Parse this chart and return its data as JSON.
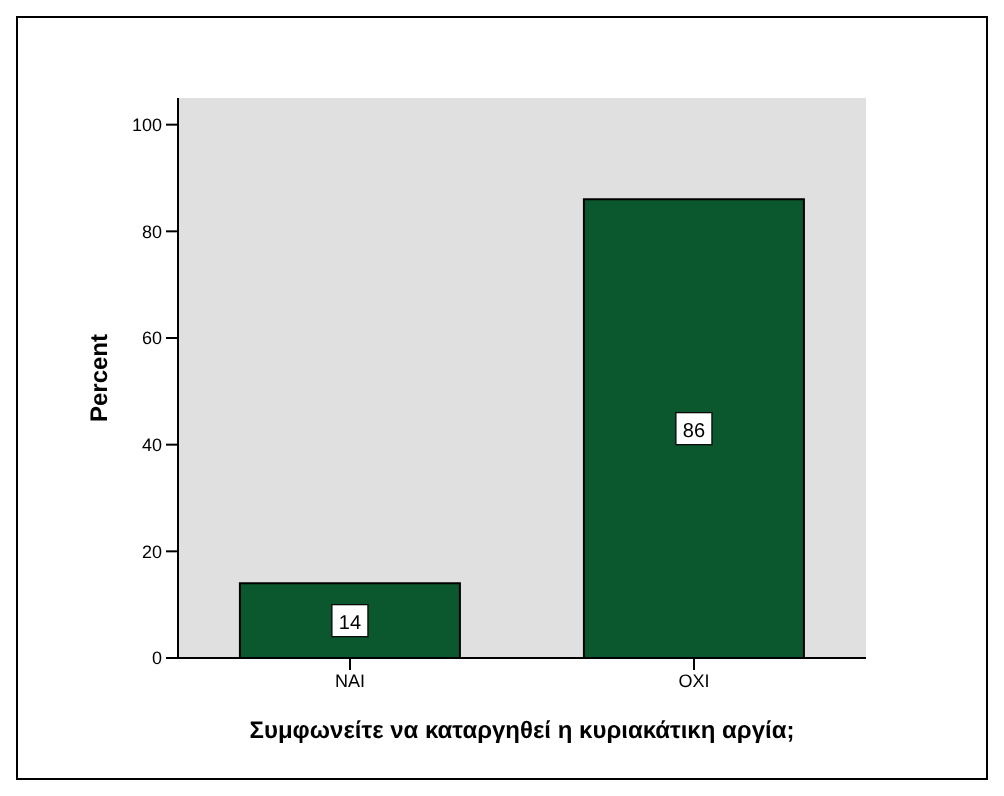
{
  "chart_data": {
    "type": "bar",
    "xlabel": "Συμφωνείτε να καταργηθεί η κυριακάτικη αργία;",
    "ylabel": "Percent",
    "categories": [
      "ΝΑΙ",
      "ΟΧΙ"
    ],
    "values": [
      14,
      86
    ],
    "color": "#0b572e",
    "ylim": [
      0,
      105
    ],
    "yticks": [
      0,
      20,
      40,
      60,
      80,
      100
    ],
    "grid": false,
    "data_labels": true
  }
}
